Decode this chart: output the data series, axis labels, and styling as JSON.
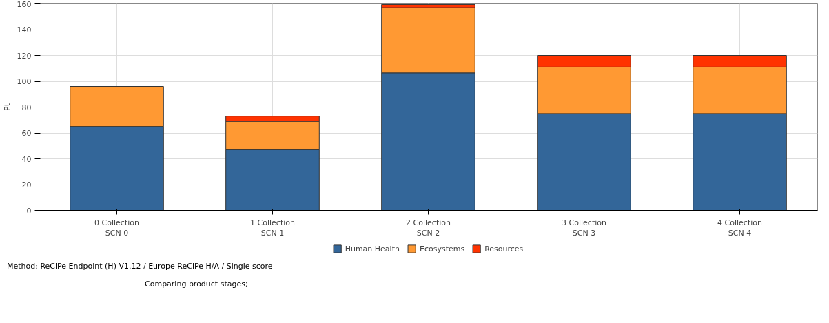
{
  "chart_data": {
    "type": "bar",
    "stacked": true,
    "ylabel": "Pt",
    "categories": [
      "0 Collection\nSCN 0",
      "1 Collection\nSCN 1",
      "2 Collection\nSCN 2",
      "3 Collection\nSCN 3",
      "4 Collection\nSCN 4"
    ],
    "series": [
      {
        "name": "Human Health",
        "color": "#336699",
        "values": [
          65,
          47,
          106.5,
          75,
          75
        ]
      },
      {
        "name": "Ecosystems",
        "color": "#ff9933",
        "values": [
          31,
          22,
          50.5,
          36,
          36
        ]
      },
      {
        "name": "Resources",
        "color": "#ff3300",
        "values": [
          null,
          4,
          2.5,
          9,
          9
        ]
      }
    ],
    "ylim": [
      0,
      160
    ],
    "yticks": [
      0,
      20,
      40,
      60,
      80,
      100,
      120,
      140,
      160
    ],
    "grid": true,
    "legend": "bottom",
    "annotations": [
      "Method: ReCiPe Endpoint (H) V1.12 / Europe ReCiPe H/A / Single score",
      "Comparing product stages;"
    ]
  }
}
